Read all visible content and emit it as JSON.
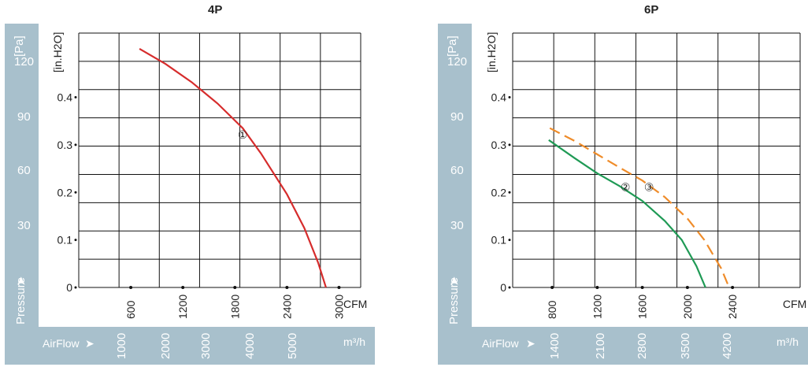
{
  "chart_data": [
    {
      "type": "line",
      "title": "4P",
      "ylabel_left": "[Pa]",
      "ylabel_right": "[in.H2O]",
      "pressure_label": "Pressure",
      "airflow_label": "AirFlow",
      "cfm_unit": "CFM",
      "m3h_unit": "m³/h",
      "pa_ticks": [
        "120",
        "90",
        "60",
        "30"
      ],
      "pa_tick_values": [
        120,
        90,
        60,
        30
      ],
      "inh2o_ticks": [
        "0.4",
        "0.3",
        "0.2",
        "0.1",
        "0"
      ],
      "inh2o_tick_values": [
        0.4,
        0.3,
        0.2,
        0.1,
        0
      ],
      "cfm_ticks": [
        "600",
        "1200",
        "1800",
        "2400",
        "3000"
      ],
      "cfm_tick_values": [
        600,
        1200,
        1800,
        2400,
        3000
      ],
      "m3h_ticks": [
        "1000",
        "2000",
        "3000",
        "4000",
        "5000"
      ],
      "m3h_tick_values": [
        1000,
        2000,
        3000,
        4000,
        5000
      ],
      "xlim_cfm": [
        0,
        3250
      ],
      "ylim_inh2o": [
        0,
        0.535
      ],
      "grid": true,
      "series": [
        {
          "marker": "①",
          "color": "#d62c2c",
          "dashed": false,
          "marker_at": [
            1890,
            0.323
          ],
          "points": [
            [
              700,
              0.502
            ],
            [
              1000,
              0.47
            ],
            [
              1300,
              0.432
            ],
            [
              1600,
              0.387
            ],
            [
              1890,
              0.335
            ],
            [
              2100,
              0.282
            ],
            [
              2400,
              0.196
            ],
            [
              2600,
              0.125
            ],
            [
              2760,
              0.052
            ],
            [
              2850,
              0
            ]
          ]
        }
      ]
    },
    {
      "type": "line",
      "title": "6P",
      "ylabel_left": "[Pa]",
      "ylabel_right": "[in.H2O]",
      "pressure_label": "Pressure",
      "airflow_label": "AirFlow",
      "cfm_unit": "CFM",
      "m3h_unit": "m³/h",
      "pa_ticks": [
        "120",
        "90",
        "60",
        "30"
      ],
      "pa_tick_values": [
        120,
        90,
        60,
        30
      ],
      "inh2o_ticks": [
        "0.4",
        "0.3",
        "0.2",
        "0.1",
        "0"
      ],
      "inh2o_tick_values": [
        0.4,
        0.3,
        0.2,
        0.1,
        0
      ],
      "cfm_ticks": [
        "800",
        "1200",
        "1600",
        "2000",
        "2400"
      ],
      "cfm_tick_values": [
        800,
        1200,
        1600,
        2000,
        2400
      ],
      "m3h_ticks": [
        "1400",
        "2100",
        "2800",
        "3500",
        "4200"
      ],
      "m3h_tick_values": [
        1400,
        2100,
        2800,
        3500,
        4200
      ],
      "xlim_cfm": [
        450,
        3000
      ],
      "ylim_inh2o": [
        0,
        0.535
      ],
      "grid": true,
      "series": [
        {
          "marker": "②",
          "color": "#1f9a55",
          "dashed": false,
          "marker_at": [
            1450,
            0.213
          ],
          "points": [
            [
              770,
              0.31
            ],
            [
              1000,
              0.272
            ],
            [
              1200,
              0.24
            ],
            [
              1400,
              0.213
            ],
            [
              1600,
              0.182
            ],
            [
              1800,
              0.14
            ],
            [
              1950,
              0.1
            ],
            [
              2080,
              0.045
            ],
            [
              2160,
              0
            ]
          ]
        },
        {
          "marker": "③",
          "color": "#ef8c2a",
          "dashed": true,
          "marker_at": [
            1660,
            0.213
          ],
          "points": [
            [
              780,
              0.335
            ],
            [
              1000,
              0.308
            ],
            [
              1200,
              0.28
            ],
            [
              1400,
              0.252
            ],
            [
              1600,
              0.225
            ],
            [
              1800,
              0.19
            ],
            [
              2000,
              0.145
            ],
            [
              2150,
              0.1
            ],
            [
              2300,
              0.04
            ],
            [
              2370,
              0
            ]
          ]
        }
      ]
    }
  ]
}
